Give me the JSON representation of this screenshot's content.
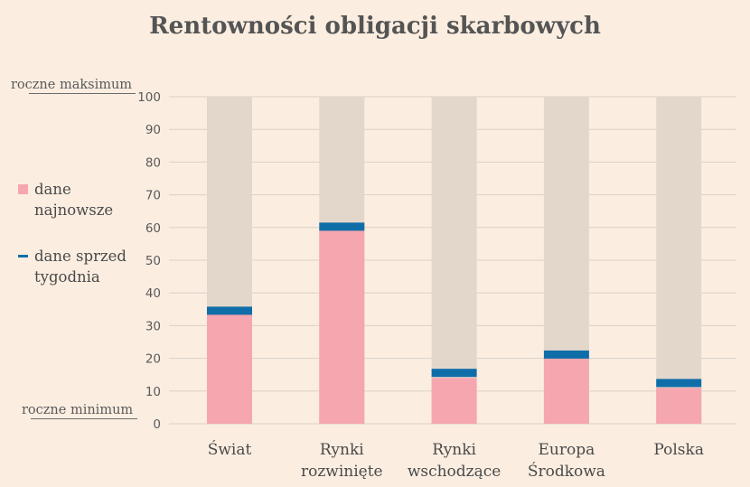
{
  "title": "Rentowności obligacji skarbowych",
  "range_labels": {
    "max": "roczne maksimum",
    "min": "roczne minimum"
  },
  "legend": {
    "latest": "dane najnowsze",
    "week_ago": "dane sprzed tygodnia"
  },
  "colors": {
    "background": "#fbeee1",
    "track": "#e3d7cc",
    "latest": "#f6a6ae",
    "week_ago": "#0f6ea8",
    "grid": "#d9d0c7",
    "text": "#4d4d4d"
  },
  "chart_data": {
    "type": "bar",
    "title": "Rentowności obligacji skarbowych",
    "categories": [
      [
        "Świat"
      ],
      [
        "Rynki",
        "rozwinięte"
      ],
      [
        "Rynki",
        "wschodzące"
      ],
      [
        "Europa",
        "Środkowa"
      ],
      [
        "Polska"
      ]
    ],
    "ylim": [
      0,
      100
    ],
    "yticks": [
      0,
      10,
      20,
      30,
      40,
      50,
      60,
      70,
      80,
      90,
      100
    ],
    "grid": true,
    "series": [
      {
        "name": "dane najnowsze",
        "values": [
          34,
          60,
          14,
          20,
          11
        ]
      },
      {
        "name": "dane sprzed tygodnia",
        "values": [
          35.8,
          61.5,
          16.8,
          22.4,
          13.7
        ]
      }
    ]
  }
}
